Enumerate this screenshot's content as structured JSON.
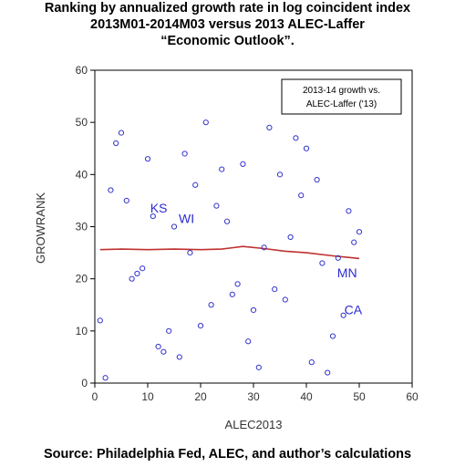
{
  "title_lines": [
    "Ranking by annualized growth rate in log coincident index",
    "2013M01-2014M03 versus 2013 ALEC-Laffer",
    "“Economic Outlook”."
  ],
  "source": "Source: Philadelphia Fed, ALEC, and author’s calculations",
  "chart_data": {
    "type": "scatter",
    "title": "Ranking by annualized growth rate in log coincident index 2013M01-2014M03 versus 2013 ALEC-Laffer “Economic Outlook”.",
    "xlabel": "ALEC2013",
    "ylabel": "GROWRANK",
    "xlim": [
      0,
      60
    ],
    "ylim": [
      0,
      60
    ],
    "xticks": [
      0,
      10,
      20,
      30,
      40,
      50,
      60
    ],
    "yticks": [
      0,
      10,
      20,
      30,
      40,
      50,
      60
    ],
    "legend": {
      "text": [
        "2013-14 growth vs.",
        "ALEC-Laffer ('13)"
      ],
      "placement": "top-right"
    },
    "colors": {
      "points": "#3333cc",
      "fit_line": "#c0302f",
      "labels": "#2b2bd6"
    },
    "points": [
      {
        "x": 1,
        "y": 12
      },
      {
        "x": 2,
        "y": 1
      },
      {
        "x": 3,
        "y": 37
      },
      {
        "x": 4,
        "y": 46
      },
      {
        "x": 5,
        "y": 48
      },
      {
        "x": 6,
        "y": 35
      },
      {
        "x": 7,
        "y": 20
      },
      {
        "x": 8,
        "y": 21
      },
      {
        "x": 9,
        "y": 22
      },
      {
        "x": 10,
        "y": 43
      },
      {
        "x": 11,
        "y": 32
      },
      {
        "x": 12,
        "y": 7
      },
      {
        "x": 13,
        "y": 6
      },
      {
        "x": 14,
        "y": 10
      },
      {
        "x": 15,
        "y": 30
      },
      {
        "x": 16,
        "y": 5
      },
      {
        "x": 17,
        "y": 44
      },
      {
        "x": 18,
        "y": 25
      },
      {
        "x": 19,
        "y": 38
      },
      {
        "x": 20,
        "y": 11
      },
      {
        "x": 21,
        "y": 50
      },
      {
        "x": 22,
        "y": 15
      },
      {
        "x": 23,
        "y": 34
      },
      {
        "x": 24,
        "y": 41
      },
      {
        "x": 25,
        "y": 31
      },
      {
        "x": 26,
        "y": 17
      },
      {
        "x": 27,
        "y": 19
      },
      {
        "x": 28,
        "y": 42
      },
      {
        "x": 29,
        "y": 8
      },
      {
        "x": 30,
        "y": 14
      },
      {
        "x": 31,
        "y": 3
      },
      {
        "x": 32,
        "y": 26
      },
      {
        "x": 33,
        "y": 49
      },
      {
        "x": 34,
        "y": 18
      },
      {
        "x": 35,
        "y": 40
      },
      {
        "x": 36,
        "y": 16
      },
      {
        "x": 37,
        "y": 28
      },
      {
        "x": 38,
        "y": 47
      },
      {
        "x": 39,
        "y": 36
      },
      {
        "x": 40,
        "y": 45
      },
      {
        "x": 41,
        "y": 4
      },
      {
        "x": 42,
        "y": 39
      },
      {
        "x": 43,
        "y": 23
      },
      {
        "x": 44,
        "y": 2
      },
      {
        "x": 45,
        "y": 9
      },
      {
        "x": 46,
        "y": 24
      },
      {
        "x": 47,
        "y": 13
      },
      {
        "x": 48,
        "y": 33
      },
      {
        "x": 49,
        "y": 27
      },
      {
        "x": 50,
        "y": 29
      }
    ],
    "fit_line": [
      {
        "x": 1,
        "y": 25.6
      },
      {
        "x": 5,
        "y": 25.7
      },
      {
        "x": 10,
        "y": 25.6
      },
      {
        "x": 15,
        "y": 25.7
      },
      {
        "x": 20,
        "y": 25.6
      },
      {
        "x": 24,
        "y": 25.7
      },
      {
        "x": 28,
        "y": 26.2
      },
      {
        "x": 32,
        "y": 25.8
      },
      {
        "x": 36,
        "y": 25.3
      },
      {
        "x": 40,
        "y": 25.0
      },
      {
        "x": 45,
        "y": 24.4
      },
      {
        "x": 50,
        "y": 23.9
      }
    ],
    "annotations": [
      {
        "text": "KS",
        "x": 11,
        "y": 32
      },
      {
        "text": "WI",
        "x": 15,
        "y": 30
      },
      {
        "text": "MN",
        "x": 46,
        "y": 24
      },
      {
        "text": "CA",
        "x": 47,
        "y": 13
      }
    ]
  }
}
